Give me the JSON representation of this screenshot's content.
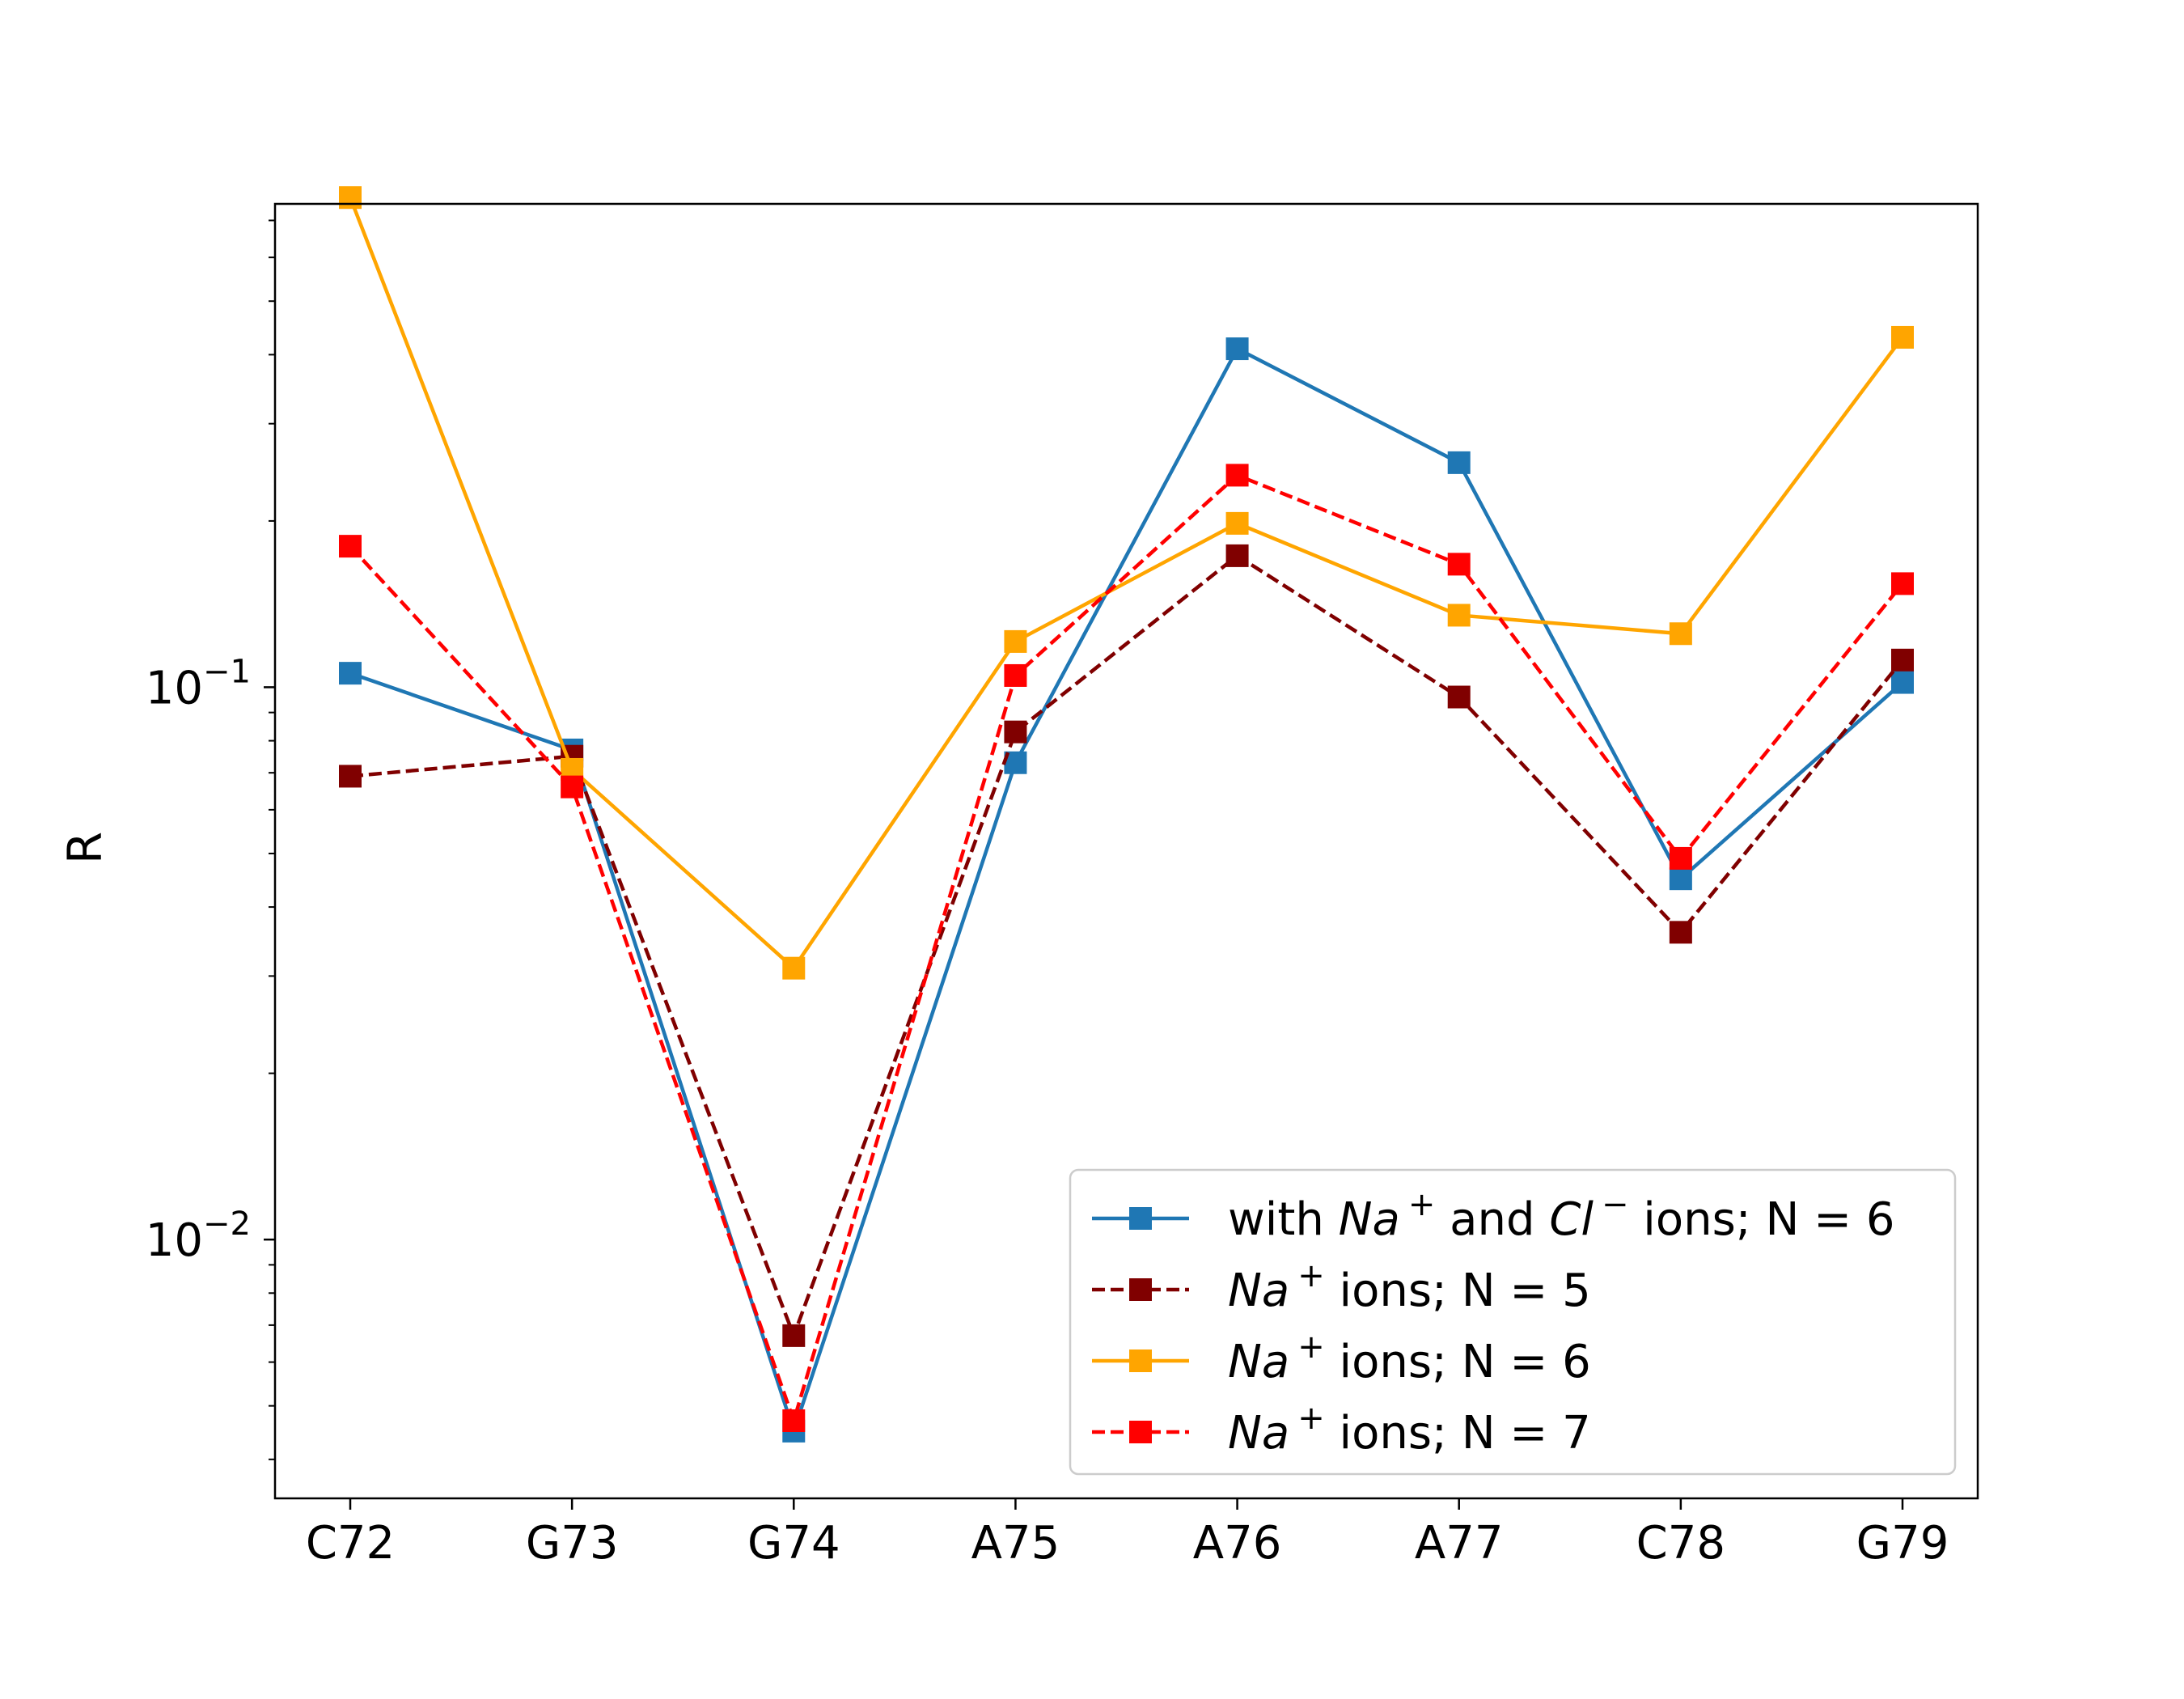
{
  "chart_data": {
    "type": "line",
    "title": "",
    "xlabel": "",
    "ylabel": "R",
    "yscale": "log",
    "ylim": [
      0.0034,
      0.75
    ],
    "categories": [
      "C72",
      "G73",
      "G74",
      "A75",
      "A76",
      "A77",
      "C78",
      "G79"
    ],
    "y_ticks": [
      {
        "value": 0.01,
        "base": "10",
        "exp": "−2"
      },
      {
        "value": 0.1,
        "base": "10",
        "exp": "−1"
      }
    ],
    "legend_position": "lower right",
    "series": [
      {
        "name": "with Na+ and Cl− ions; N = 6",
        "color": "#1f77b4",
        "dashed": false,
        "values": [
          0.106,
          0.077,
          0.0045,
          0.073,
          0.41,
          0.255,
          0.045,
          0.102
        ]
      },
      {
        "name": "Na+ ions; N = 5",
        "color": "#800000",
        "dashed": true,
        "values": [
          0.069,
          0.075,
          0.0067,
          0.083,
          0.173,
          0.096,
          0.036,
          0.112
        ]
      },
      {
        "name": "Na+ ions; N = 6",
        "color": "#ffa500",
        "dashed": false,
        "values": [
          0.77,
          0.071,
          0.031,
          0.121,
          0.198,
          0.135,
          0.125,
          0.43
        ]
      },
      {
        "name": "Na+ ions; N = 7",
        "color": "#ff0000",
        "dashed": true,
        "values": [
          0.18,
          0.066,
          0.0047,
          0.105,
          0.242,
          0.167,
          0.049,
          0.154
        ]
      }
    ]
  },
  "legend": {
    "entries": [
      {
        "prefix": "with ",
        "ion1": "Na",
        "sup1": "+",
        "middle": " and ",
        "ion2": "Cl",
        "sup2": "−",
        "suffix": " ions; N = 6"
      },
      {
        "prefix": "",
        "ion1": "Na",
        "sup1": "+",
        "suffix": " ions; N = 5"
      },
      {
        "prefix": "",
        "ion1": "Na",
        "sup1": "+",
        "suffix": " ions; N = 6"
      },
      {
        "prefix": "",
        "ion1": "Na",
        "sup1": "+",
        "suffix": " ions; N = 7"
      }
    ]
  }
}
